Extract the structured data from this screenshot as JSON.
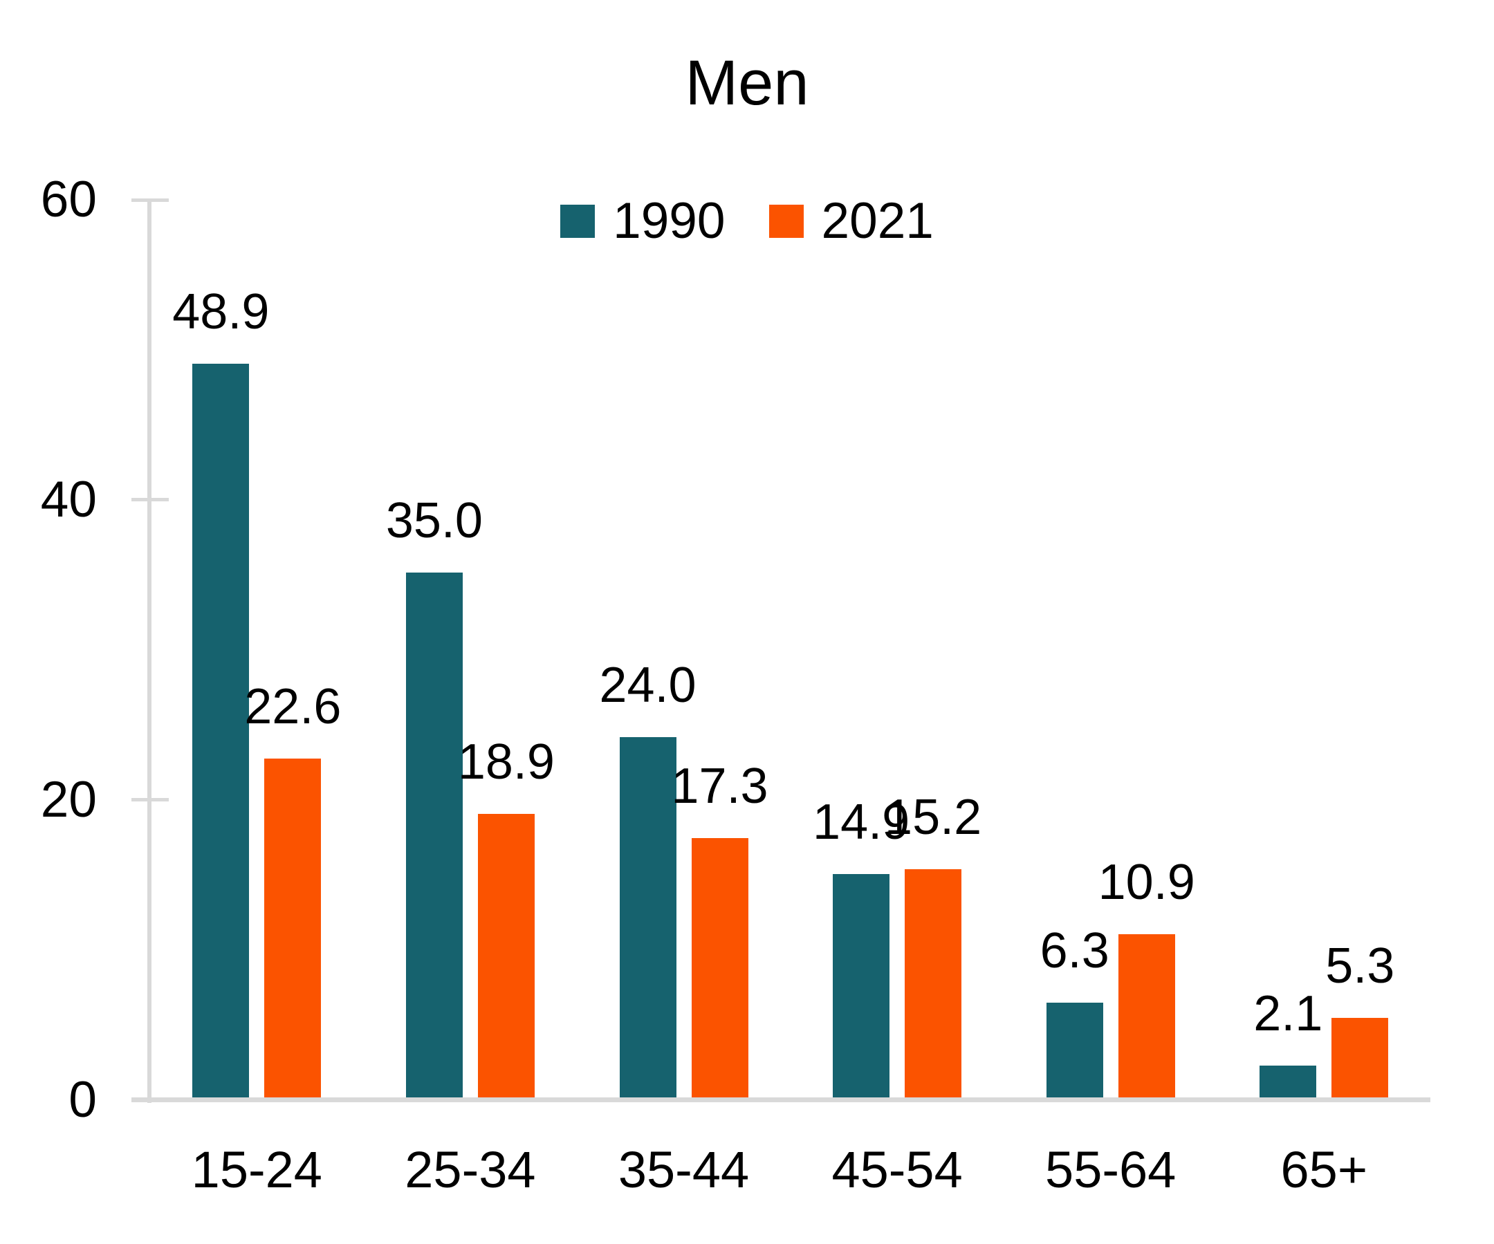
{
  "chart_data": {
    "type": "bar",
    "title": "Men",
    "categories": [
      "15-24",
      "25-34",
      "35-44",
      "45-54",
      "55-64",
      "65+"
    ],
    "series": [
      {
        "name": "1990",
        "color": "#16626E",
        "values": [
          48.9,
          35.0,
          24.0,
          14.9,
          6.3,
          2.1
        ],
        "labels": [
          "48.9",
          "35.0",
          "24.0",
          "14.9",
          "6.3",
          "2.1"
        ]
      },
      {
        "name": "2021",
        "color": "#FB5300",
        "values": [
          22.6,
          18.9,
          17.3,
          15.2,
          10.9,
          5.3
        ],
        "labels": [
          "22.6",
          "18.9",
          "17.3",
          "15.2",
          "10.9",
          "5.3"
        ]
      }
    ],
    "ylim": [
      0,
      60
    ],
    "yticks": [
      "0",
      "20",
      "40",
      "60"
    ],
    "ytick_values": [
      0,
      20,
      40,
      60
    ],
    "grid": false,
    "data_labels": true,
    "legend_position": "top-center",
    "axis_color": "#D9D9D9",
    "text_color": "#000000"
  }
}
